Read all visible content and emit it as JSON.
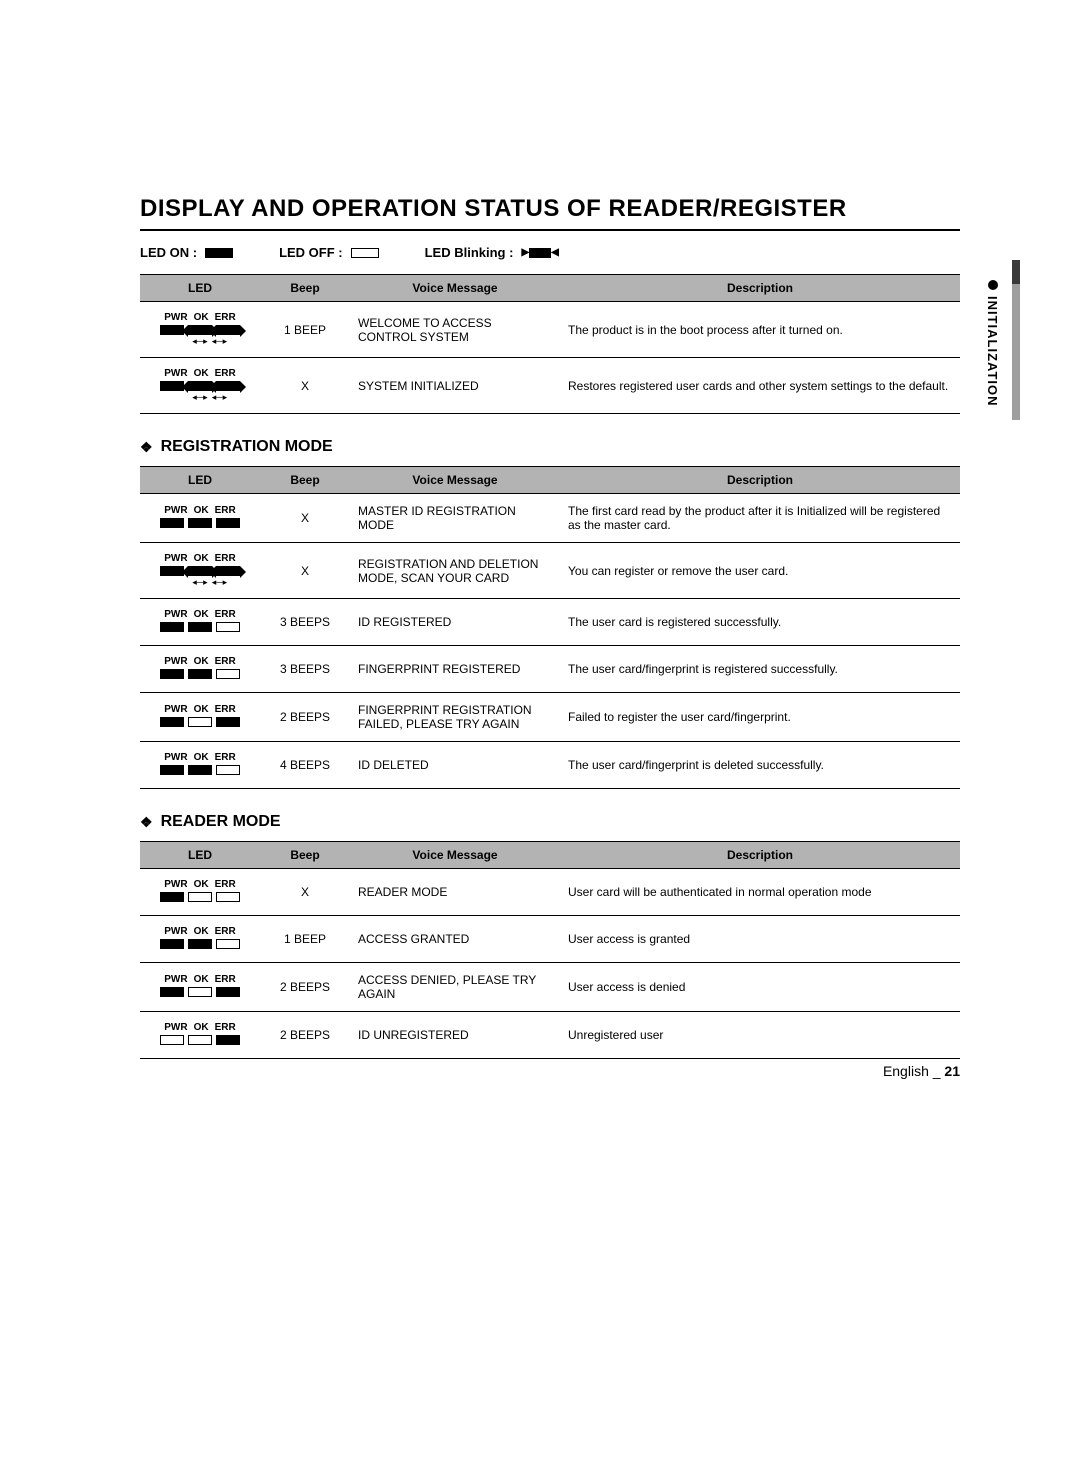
{
  "title": "DISPLAY AND OPERATION STATUS OF READER/REGISTER",
  "legend": {
    "on": "LED ON :",
    "off": "LED OFF :",
    "blink": "LED Blinking :"
  },
  "columns": {
    "led": "LED",
    "beep": "Beep",
    "voice": "Voice Message",
    "desc": "Description"
  },
  "led_labels": {
    "pwr": "PWR",
    "ok": "OK",
    "err": "ERR"
  },
  "tables": [
    {
      "heading": null,
      "rows": [
        {
          "led": [
            "on",
            "blink",
            "blink"
          ],
          "beep": "1 BEEP",
          "voice": "WELCOME TO ACCESS CONTROL SYSTEM",
          "desc": "The product is in the boot process after it turned on."
        },
        {
          "led": [
            "on",
            "blink",
            "blink"
          ],
          "beep": "X",
          "voice": "SYSTEM INITIALIZED",
          "desc": "Restores registered user cards and other system settings to the default."
        }
      ]
    },
    {
      "heading": "REGISTRATION MODE",
      "rows": [
        {
          "led": [
            "on",
            "on",
            "on"
          ],
          "beep": "X",
          "voice": "MASTER ID REGISTRATION MODE",
          "desc": "The first card read by the product after it is Initialized will be registered as the master card."
        },
        {
          "led": [
            "on",
            "blink",
            "blink"
          ],
          "beep": "X",
          "voice": "REGISTRATION AND DELETION MODE, SCAN YOUR CARD",
          "desc": "You can register or remove the user card."
        },
        {
          "led": [
            "on",
            "on",
            "off"
          ],
          "beep": "3 BEEPS",
          "voice": "ID REGISTERED",
          "desc": "The user card is registered successfully."
        },
        {
          "led": [
            "on",
            "on",
            "off"
          ],
          "beep": "3 BEEPS",
          "voice": "FINGERPRINT REGISTERED",
          "desc": "The user card/fingerprint is registered successfully."
        },
        {
          "led": [
            "on",
            "off",
            "on"
          ],
          "beep": "2 BEEPS",
          "voice": "FINGERPRINT REGISTRATION FAILED, PLEASE TRY AGAIN",
          "desc": "Failed to register the user card/fingerprint."
        },
        {
          "led": [
            "on",
            "on",
            "off"
          ],
          "beep": "4 BEEPS",
          "voice": "ID DELETED",
          "desc": "The user card/fingerprint is deleted successfully."
        }
      ]
    },
    {
      "heading": "READER MODE",
      "rows": [
        {
          "led": [
            "on",
            "off",
            "off"
          ],
          "beep": "X",
          "voice": "READER MODE",
          "desc": "User card will be authenticated in normal operation mode"
        },
        {
          "led": [
            "on",
            "on",
            "off"
          ],
          "beep": "1 BEEP",
          "voice": "ACCESS GRANTED",
          "desc": "User access is granted"
        },
        {
          "led": [
            "on",
            "off",
            "on"
          ],
          "beep": "2 BEEPS",
          "voice": "ACCESS DENIED, PLEASE TRY AGAIN",
          "desc": "User access is denied"
        },
        {
          "led": [
            "off",
            "off",
            "on"
          ],
          "beep": "2 BEEPS",
          "voice": "ID UNREGISTERED",
          "desc": "Unregistered user"
        }
      ]
    }
  ],
  "side_tab": "INITIALIZATION",
  "footer": {
    "lang": "English _",
    "page": "21"
  }
}
